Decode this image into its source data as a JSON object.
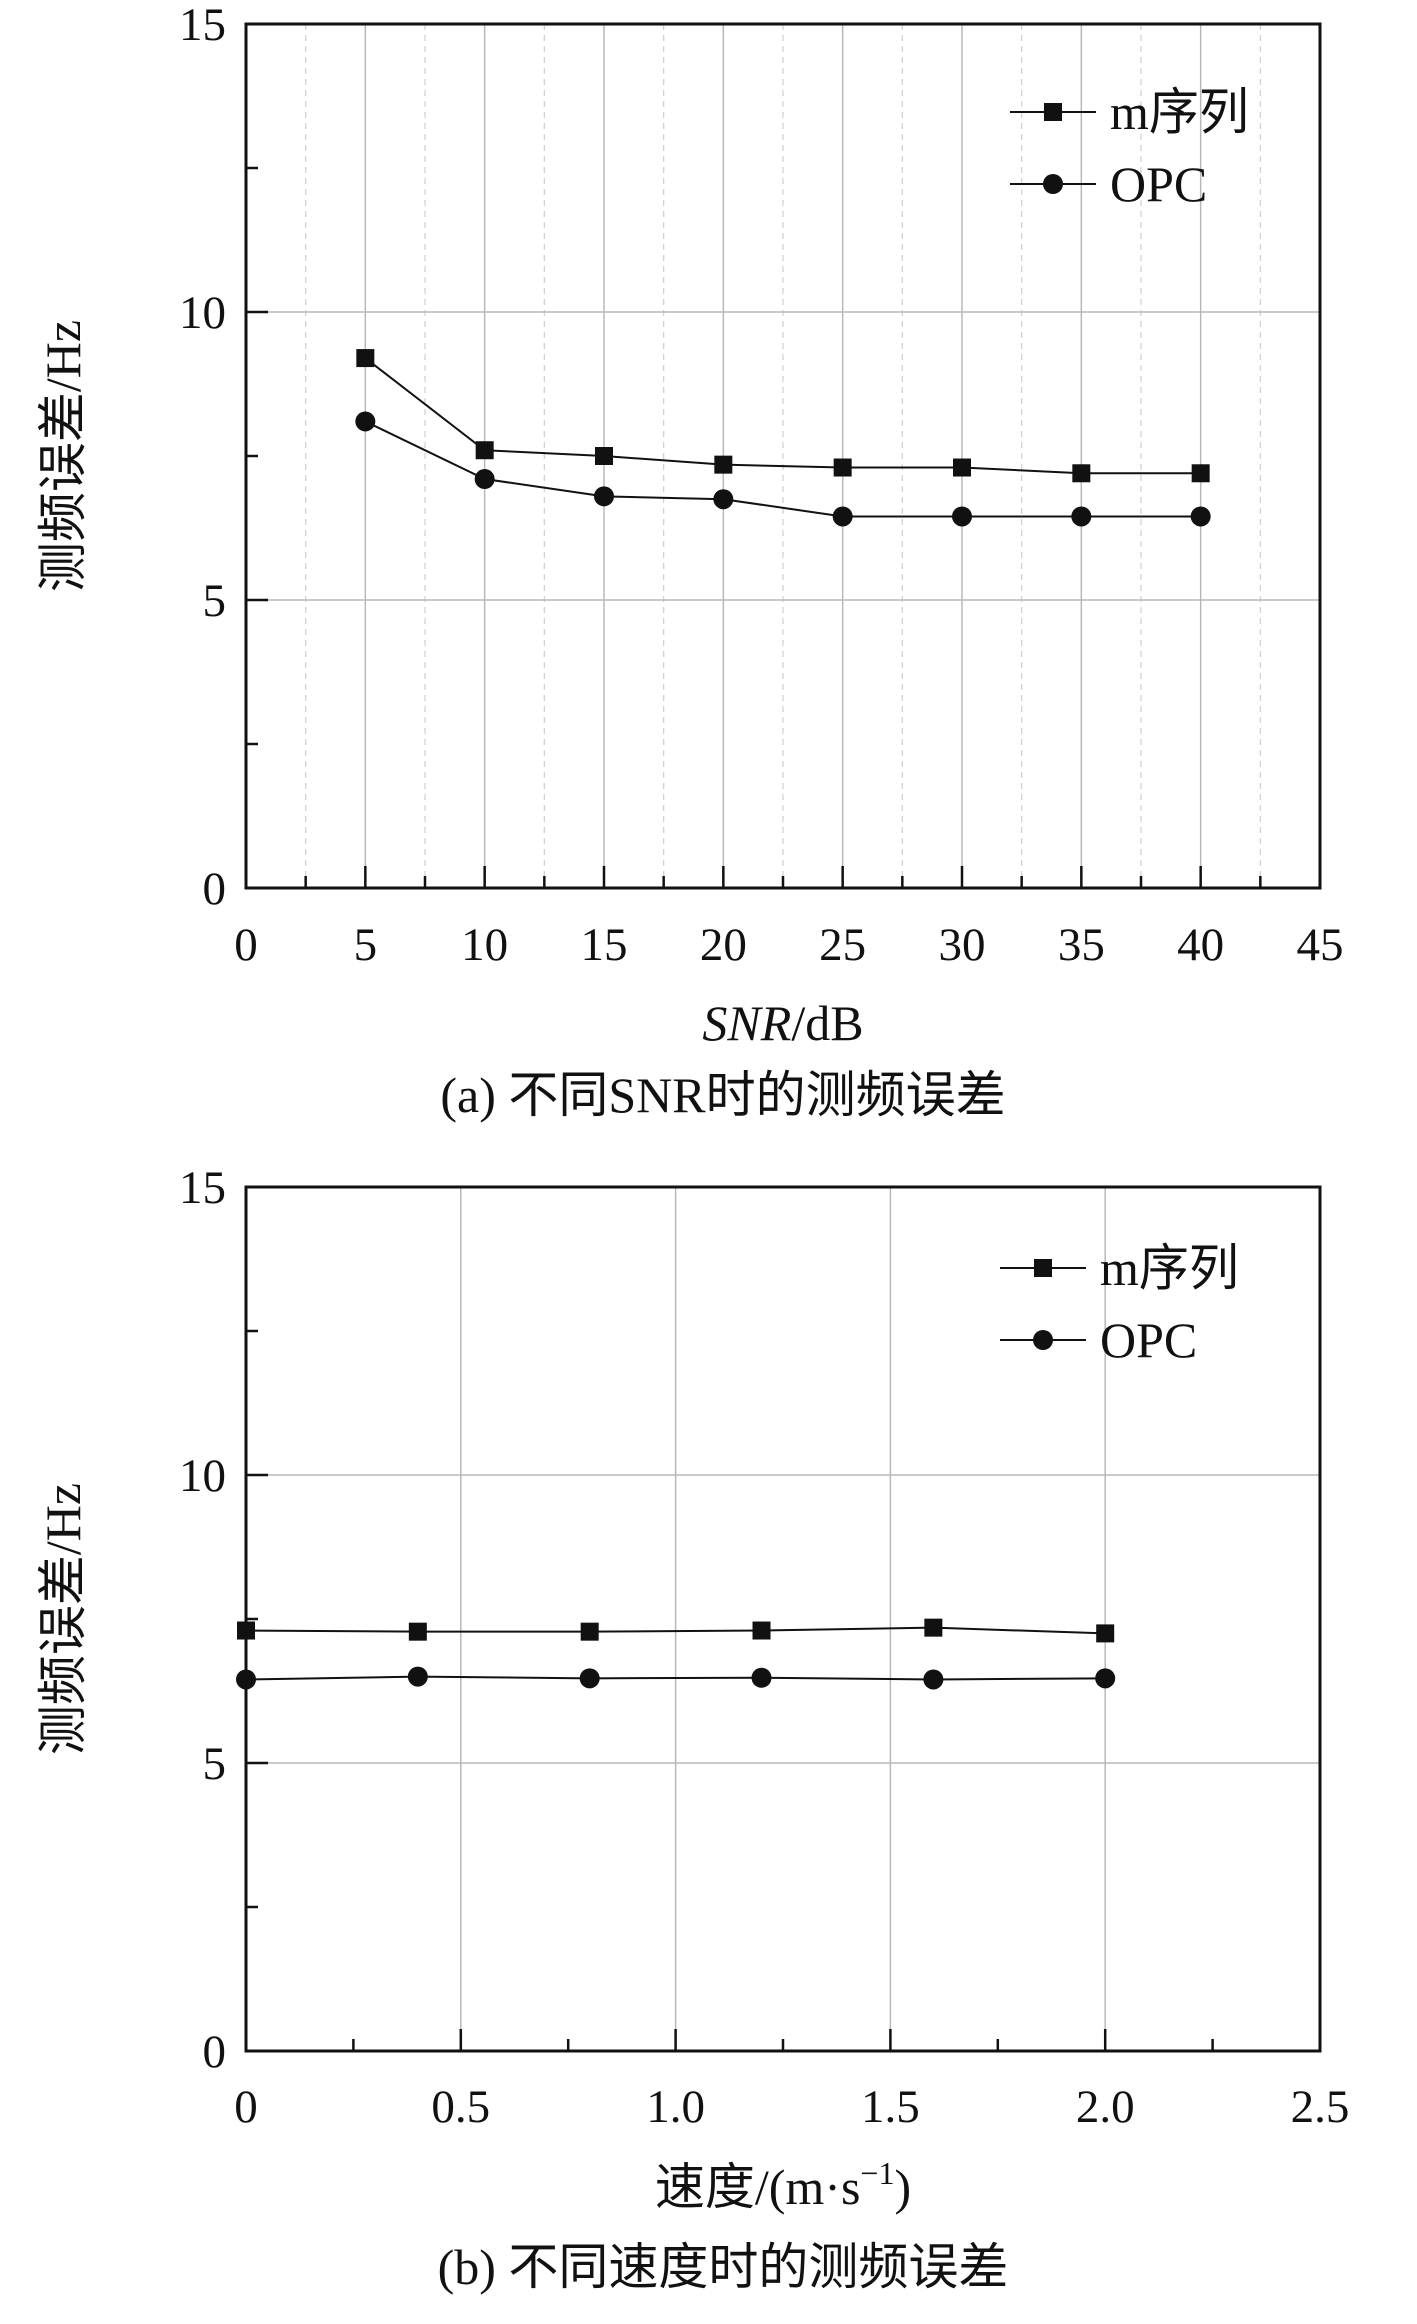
{
  "chart_data": [
    {
      "type": "line",
      "caption": "(a) 不同SNR时的测频误差",
      "xlabel_var": "SNR",
      "xlabel_unit": "/dB",
      "ylabel": "测频误差/Hz",
      "xlim": [
        0,
        45
      ],
      "ylim": [
        0,
        15
      ],
      "x_ticks": [
        "0",
        "5",
        "10",
        "15",
        "20",
        "25",
        "30",
        "35",
        "40",
        "45"
      ],
      "y_ticks": [
        "0",
        "5",
        "10",
        "15"
      ],
      "grid": true,
      "legend_position": "top-right",
      "x": [
        5,
        10,
        15,
        20,
        25,
        30,
        35,
        40
      ],
      "series": [
        {
          "name": "m序列",
          "marker": "square",
          "values": [
            9.2,
            7.6,
            7.5,
            7.35,
            7.3,
            7.3,
            7.2,
            7.2
          ]
        },
        {
          "name": "OPC",
          "marker": "circle",
          "values": [
            8.1,
            7.1,
            6.8,
            6.75,
            6.45,
            6.45,
            6.45,
            6.45
          ]
        }
      ]
    },
    {
      "type": "line",
      "caption": "(b) 不同速度时的测频误差",
      "xlabel_prefix": "速度/(m·s",
      "xlabel_sup": "−1",
      "xlabel_suffix": ")",
      "ylabel": "测频误差/Hz",
      "xlim": [
        0,
        2.5
      ],
      "ylim": [
        0,
        15
      ],
      "x_ticks": [
        "0",
        "0.5",
        "1.0",
        "1.5",
        "2.0",
        "2.5"
      ],
      "y_ticks": [
        "0",
        "5",
        "10",
        "15"
      ],
      "grid": true,
      "legend_position": "top-right",
      "x": [
        0,
        0.4,
        0.8,
        1.2,
        1.6,
        2.0
      ],
      "series": [
        {
          "name": "m序列",
          "marker": "square",
          "values": [
            7.3,
            7.28,
            7.28,
            7.3,
            7.35,
            7.25
          ]
        },
        {
          "name": "OPC",
          "marker": "circle",
          "values": [
            6.45,
            6.5,
            6.47,
            6.48,
            6.45,
            6.47
          ]
        }
      ]
    }
  ]
}
